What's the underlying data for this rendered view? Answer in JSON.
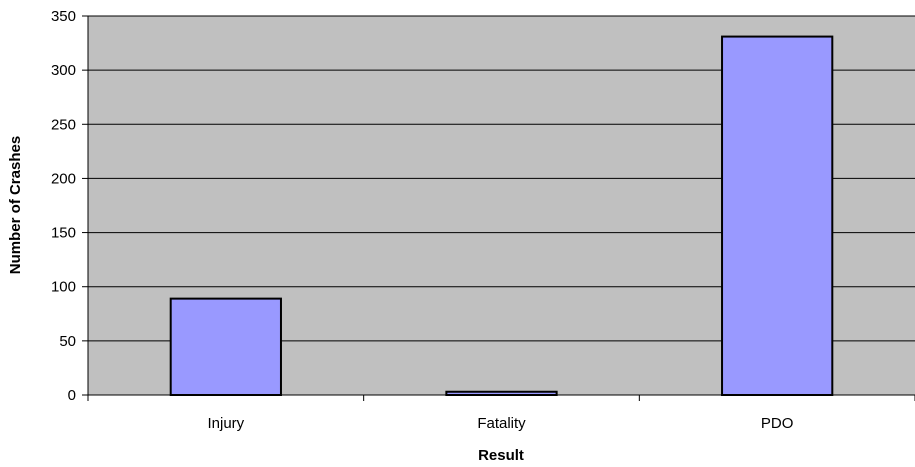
{
  "chart_data": {
    "type": "bar",
    "title": "",
    "xlabel": "Result",
    "ylabel": "Number of Crashes",
    "categories": [
      "Injury",
      "Fatality",
      "PDO"
    ],
    "values": [
      89,
      3,
      331
    ],
    "ylim": [
      0,
      350
    ],
    "yticks": [
      "0",
      "50",
      "100",
      "150",
      "200",
      "250",
      "300",
      "350"
    ],
    "grid": "horizontal",
    "legend": "none",
    "colors": {
      "plot_background": "#c0c0c0",
      "bar_fill": "#9999ff",
      "bar_stroke": "#000000",
      "gridline": "#000000"
    }
  }
}
